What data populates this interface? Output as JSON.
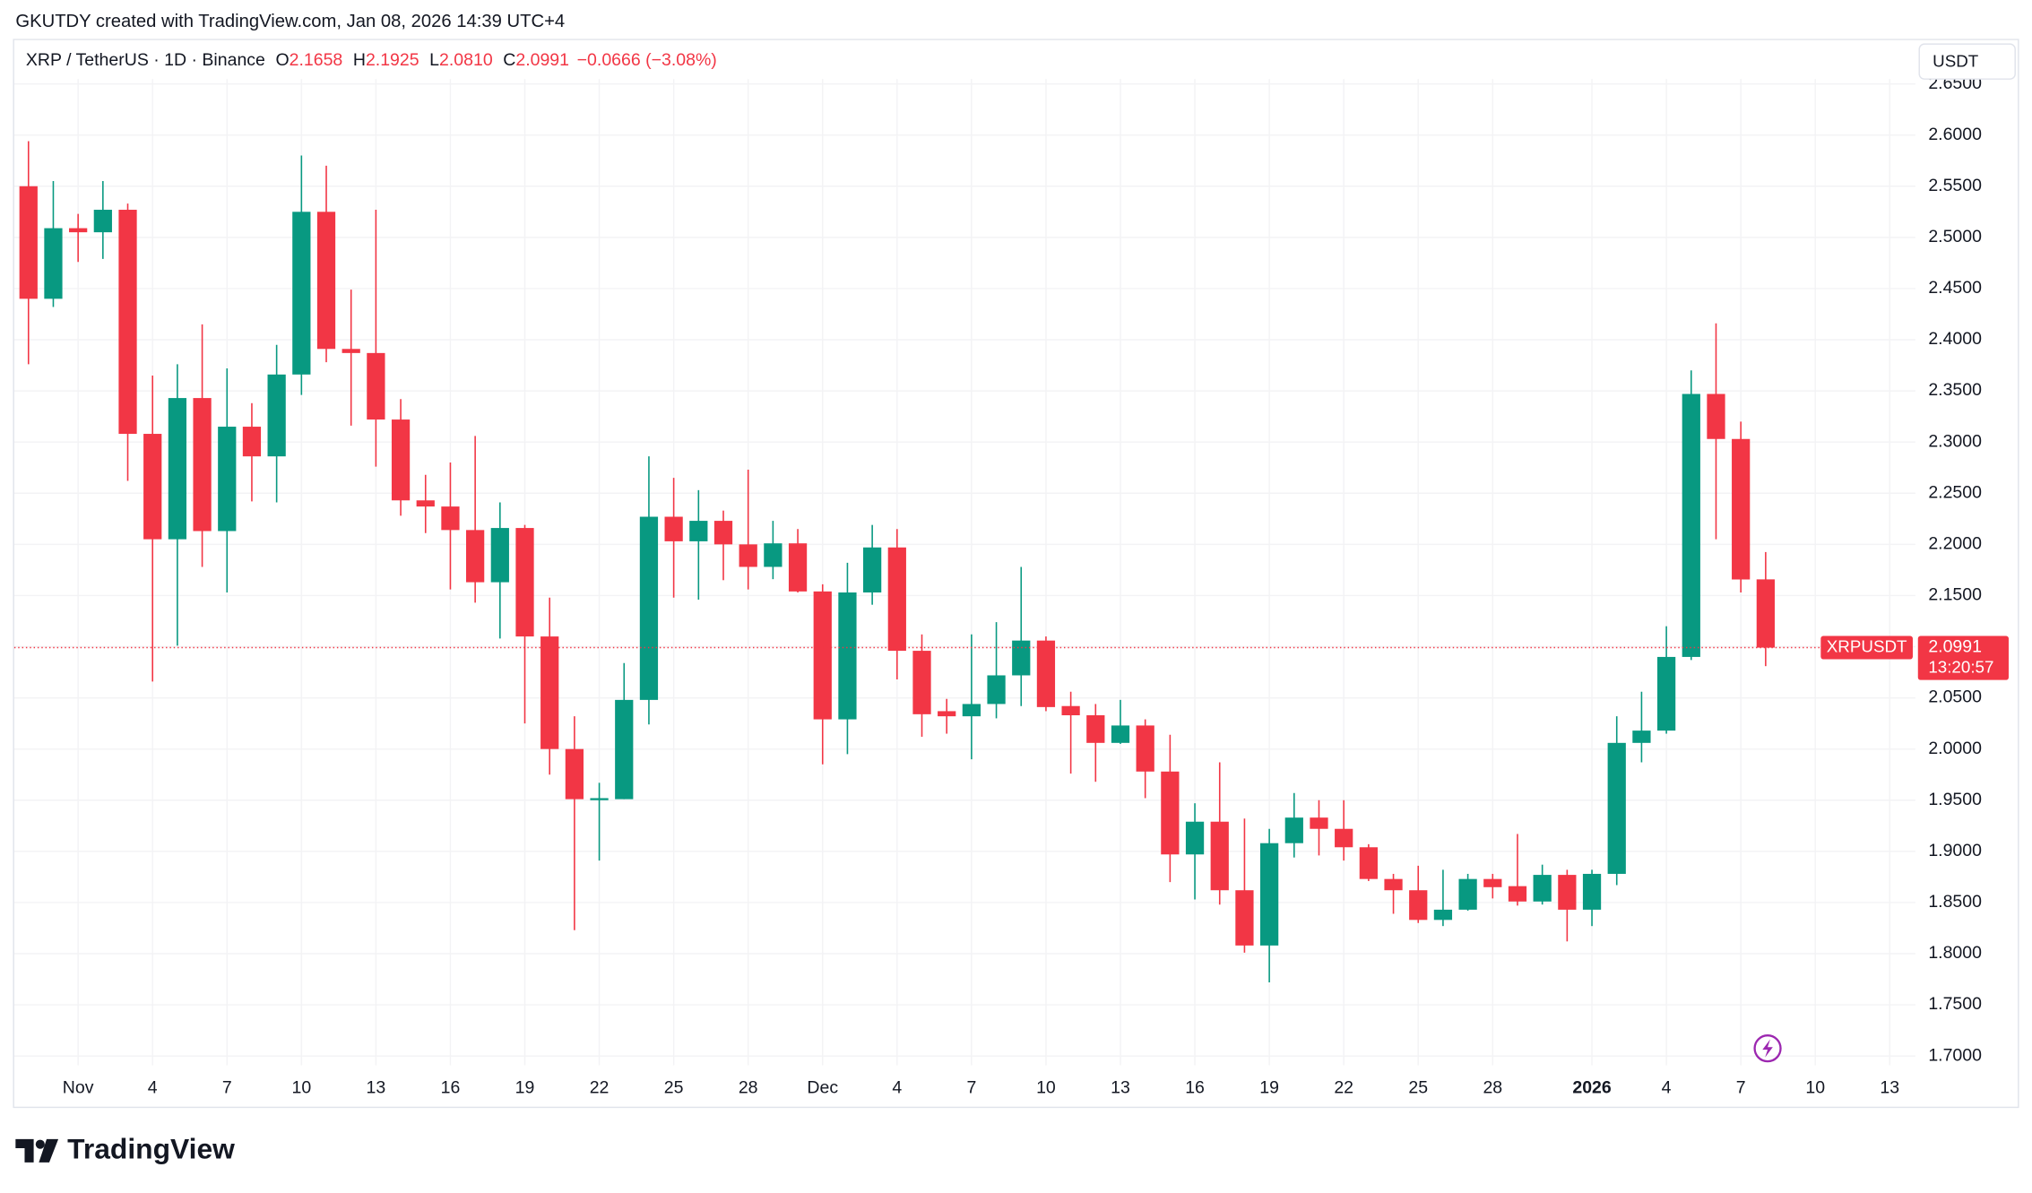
{
  "header": "GKUTDY created with TradingView.com, Jan 08, 2026 14:39 UTC+4",
  "footer_logo": "TradingView",
  "chart_data": {
    "type": "candlestick",
    "symbol": "XRP / TetherUS · 1D · Binance",
    "legend": [
      {
        "label": "O",
        "value": "2.1658"
      },
      {
        "label": "H",
        "value": "2.1925"
      },
      {
        "label": "L",
        "value": "2.0810"
      },
      {
        "label": "C",
        "value": "2.0991"
      }
    ],
    "change": "−0.0666 (−3.08%)",
    "currency": "USDT",
    "price_label": {
      "name": "XRPUSDT",
      "countdown": "13:20:57"
    },
    "up_color": "#089981",
    "down_color": "#f23645",
    "grid": true,
    "categories": [
      null,
      null,
      "Nov",
      null,
      null,
      "4",
      null,
      null,
      "7",
      null,
      null,
      "10",
      null,
      null,
      "13",
      null,
      null,
      "16",
      null,
      null,
      "19",
      null,
      null,
      "22",
      null,
      null,
      "25",
      null,
      null,
      "28",
      null,
      null,
      "Dec",
      null,
      null,
      "4",
      null,
      null,
      "7",
      null,
      null,
      "10",
      null,
      null,
      "13",
      null,
      null,
      "16",
      null,
      null,
      "19",
      null,
      null,
      "22",
      null,
      null,
      "25",
      null,
      null,
      "28",
      null,
      null,
      null,
      "2026",
      null,
      null,
      "4",
      null,
      null,
      "7",
      null,
      null,
      "10",
      null,
      null,
      "13"
    ],
    "open": [
      2.55,
      2.44,
      2.509,
      2.505,
      2.527,
      2.308,
      2.205,
      2.343,
      2.213,
      2.315,
      2.286,
      2.366,
      2.525,
      2.391,
      2.387,
      2.322,
      2.243,
      2.237,
      2.214,
      2.163,
      2.216,
      2.11,
      2.0,
      1.95,
      1.951,
      2.048,
      2.227,
      2.203,
      2.223,
      2.2,
      2.178,
      2.201,
      2.154,
      2.029,
      2.153,
      2.197,
      2.096,
      2.037,
      2.032,
      2.044,
      2.072,
      2.106,
      2.042,
      2.033,
      2.006,
      2.023,
      1.978,
      1.897,
      1.929,
      1.862,
      1.808,
      1.908,
      1.933,
      1.922,
      1.904,
      1.873,
      1.862,
      1.833,
      1.843,
      1.873,
      1.866,
      1.851,
      1.877,
      1.843,
      1.878,
      2.006,
      2.018,
      2.09,
      2.347,
      2.303,
      2.1658,
      null,
      null,
      null,
      null,
      null
    ],
    "high": [
      2.594,
      2.555,
      2.523,
      2.555,
      2.533,
      2.365,
      2.376,
      2.415,
      2.372,
      2.338,
      2.395,
      2.58,
      2.57,
      2.449,
      2.527,
      2.342,
      2.268,
      2.28,
      2.306,
      2.241,
      2.219,
      2.148,
      2.032,
      1.967,
      2.084,
      2.286,
      2.265,
      2.253,
      2.233,
      2.273,
      2.223,
      2.215,
      2.161,
      2.182,
      2.219,
      2.215,
      2.112,
      2.049,
      2.112,
      2.124,
      2.178,
      2.11,
      2.056,
      2.044,
      2.048,
      2.029,
      2.014,
      1.947,
      1.987,
      1.932,
      1.922,
      1.957,
      1.95,
      1.95,
      1.907,
      1.878,
      1.886,
      1.882,
      1.878,
      1.878,
      1.917,
      1.887,
      1.882,
      1.882,
      2.032,
      2.056,
      2.12,
      2.37,
      2.416,
      2.32,
      2.1925,
      null,
      null,
      null,
      null,
      null
    ],
    "low": [
      2.376,
      2.432,
      2.476,
      2.479,
      2.262,
      2.066,
      2.101,
      2.178,
      2.153,
      2.242,
      2.241,
      2.346,
      2.378,
      2.316,
      2.276,
      2.228,
      2.211,
      2.156,
      2.143,
      2.108,
      2.025,
      1.975,
      1.823,
      1.891,
      1.951,
      2.024,
      2.148,
      2.146,
      2.165,
      2.156,
      2.166,
      2.153,
      1.985,
      1.995,
      2.141,
      2.068,
      2.012,
      2.015,
      1.99,
      2.03,
      2.042,
      2.037,
      1.976,
      1.968,
      2.005,
      1.952,
      1.87,
      1.853,
      1.848,
      1.801,
      1.772,
      1.894,
      1.896,
      1.891,
      1.871,
      1.839,
      1.83,
      1.827,
      1.842,
      1.854,
      1.847,
      1.848,
      1.812,
      1.827,
      1.867,
      1.987,
      2.015,
      2.087,
      2.205,
      2.153,
      2.081,
      null,
      null,
      null,
      null,
      null
    ],
    "close": [
      2.44,
      2.509,
      2.505,
      2.527,
      2.308,
      2.205,
      2.343,
      2.213,
      2.315,
      2.286,
      2.366,
      2.525,
      2.391,
      2.387,
      2.322,
      2.243,
      2.237,
      2.214,
      2.163,
      2.216,
      2.11,
      2.0,
      1.951,
      1.952,
      2.048,
      2.227,
      2.203,
      2.223,
      2.2,
      2.178,
      2.201,
      2.154,
      2.029,
      2.153,
      2.197,
      2.096,
      2.034,
      2.032,
      2.044,
      2.072,
      2.106,
      2.041,
      2.033,
      2.006,
      2.023,
      1.978,
      1.897,
      1.929,
      1.862,
      1.808,
      1.908,
      1.933,
      1.922,
      1.904,
      1.873,
      1.862,
      1.833,
      1.843,
      1.873,
      1.865,
      1.851,
      1.877,
      1.843,
      1.878,
      2.006,
      2.018,
      2.09,
      2.347,
      2.303,
      2.1657,
      2.0991,
      null,
      null,
      null,
      null,
      null
    ],
    "ylim": [
      1.691,
      2.656
    ],
    "yticks": [
      {
        "value": 1.7,
        "label": "1.7000"
      },
      {
        "value": 1.75,
        "label": "1.7500"
      },
      {
        "value": 1.8,
        "label": "1.8000"
      },
      {
        "value": 1.85,
        "label": "1.8500"
      },
      {
        "value": 1.9,
        "label": "1.9000"
      },
      {
        "value": 1.95,
        "label": "1.9500"
      },
      {
        "value": 2.0,
        "label": "2.0000"
      },
      {
        "value": 2.05,
        "label": "2.0500"
      },
      {
        "value": 2.1,
        "label": "2.1000"
      },
      {
        "value": 2.15,
        "label": "2.1500"
      },
      {
        "value": 2.2,
        "label": "2.2000"
      },
      {
        "value": 2.25,
        "label": "2.2500"
      },
      {
        "value": 2.3,
        "label": "2.3000"
      },
      {
        "value": 2.35,
        "label": "2.3500"
      },
      {
        "value": 2.4,
        "label": "2.4000"
      },
      {
        "value": 2.45,
        "label": "2.4500"
      },
      {
        "value": 2.5,
        "label": "2.5000"
      },
      {
        "value": 2.55,
        "label": "2.5500"
      },
      {
        "value": 2.6,
        "label": "2.6000"
      },
      {
        "value": 2.65,
        "label": "2.6500"
      }
    ]
  }
}
